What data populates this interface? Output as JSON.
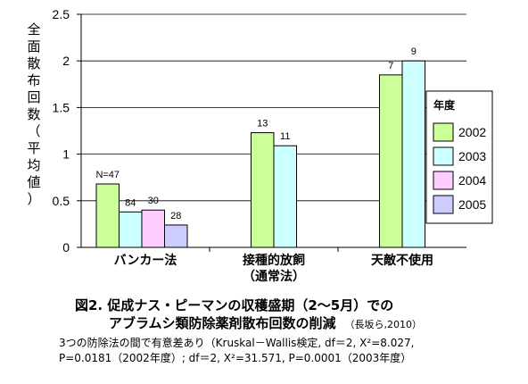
{
  "chart_data": {
    "type": "bar",
    "categories": [
      "バンカー法",
      "接種的放飼\n（通常法）",
      "天敵不使用"
    ],
    "ylabel": "全面散布回数（平均値）",
    "ylim": [
      0,
      2.5
    ],
    "yticks": [
      0,
      0.5,
      1,
      1.5,
      2,
      2.5
    ],
    "ytick_labels": [
      "0",
      "0.5",
      "1",
      "1.5",
      "2",
      "2.5"
    ],
    "grid": true,
    "legend": {
      "title": "年度",
      "placement": "right"
    },
    "series": [
      {
        "name": "2002",
        "color": "#ccff99",
        "values": [
          0.68,
          1.23,
          1.85
        ],
        "labels": [
          "N=47",
          "13",
          "7"
        ]
      },
      {
        "name": "2003",
        "color": "#ccffff",
        "values": [
          0.38,
          1.09,
          2.0
        ],
        "labels": [
          "84",
          "11",
          "9"
        ]
      },
      {
        "name": "2004",
        "color": "#ffccff",
        "values": [
          0.4,
          null,
          null
        ],
        "labels": [
          "30",
          null,
          null
        ]
      },
      {
        "name": "2005",
        "color": "#ccccff",
        "values": [
          0.24,
          null,
          null
        ],
        "labels": [
          "28",
          null,
          null
        ]
      }
    ]
  },
  "caption": {
    "line1": "図2. 促成ナス・ピーマンの収穫盛期（2～5月）での",
    "line2": "アブラムシ類防除薬剤散布回数の削減",
    "source": "（長坂ら,2010）"
  },
  "note": {
    "line1": "3つの防除法の間で有意差あり（Kruskal－Wallis検定, df＝2, X²=8.027,",
    "line2": "P=0.0181（2002年度）; df＝2, X²=31.571, P=0.0001（2003年度）"
  }
}
